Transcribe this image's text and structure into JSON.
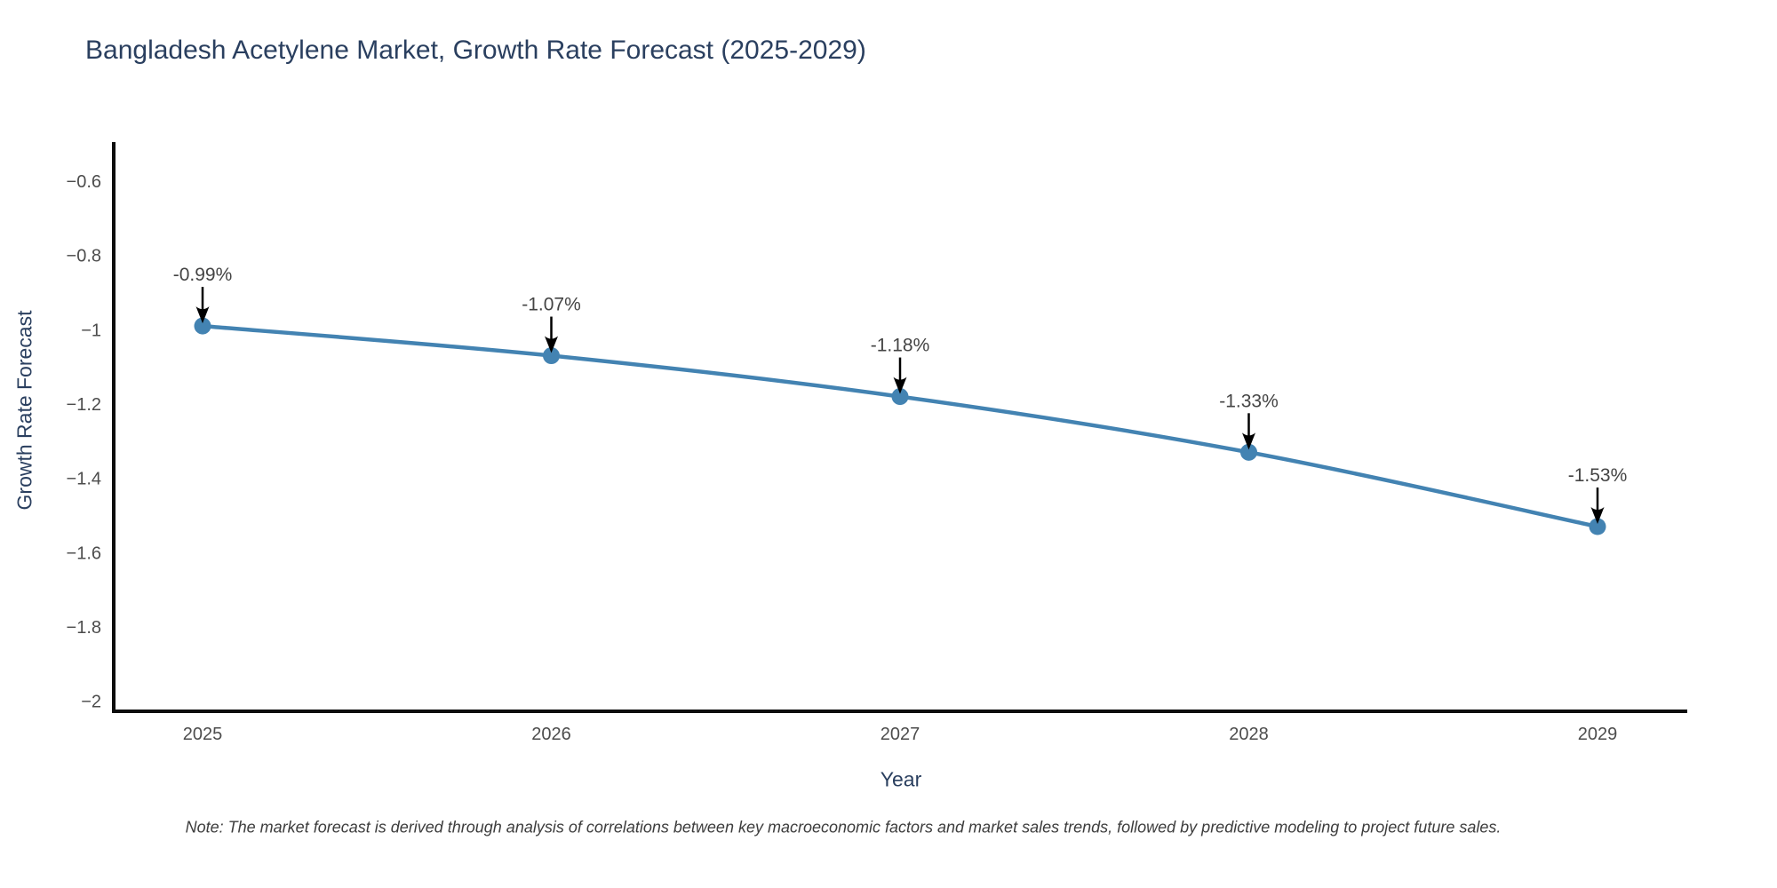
{
  "title": "Bangladesh Acetylene Market, Growth Rate Forecast (2025-2029)",
  "note": "Note: The market forecast is derived through analysis of correlations between key macroeconomic factors and market sales trends, followed by predictive modeling to project future sales.",
  "chart_data": {
    "type": "line",
    "title": "Bangladesh Acetylene Market, Growth Rate Forecast (2025-2029)",
    "xlabel": "Year",
    "ylabel": "Growth Rate Forecast",
    "x": [
      2025,
      2026,
      2027,
      2028,
      2029
    ],
    "series": [
      {
        "name": "Growth Rate Forecast",
        "values": [
          -0.99,
          -1.07,
          -1.18,
          -1.33,
          -1.53
        ],
        "point_labels": [
          "-0.99%",
          "-1.07%",
          "-1.18%",
          "-1.33%",
          "-1.53%"
        ]
      }
    ],
    "x_tick_labels": [
      "2025",
      "2026",
      "2027",
      "2028",
      "2029"
    ],
    "y_tick_labels": [
      "−0.6",
      "−0.8",
      "−1",
      "−1.2",
      "−1.4",
      "−1.6",
      "−1.8",
      "−2"
    ],
    "y_tick_values": [
      -0.6,
      -0.8,
      -1.0,
      -1.2,
      -1.4,
      -1.6,
      -1.8,
      -2.0
    ],
    "ylim": [
      -2.032,
      -0.495
    ],
    "grid": false,
    "legend_position": "none",
    "annotations_have_arrows": true
  },
  "colors": {
    "background": "#ffffff",
    "title_text": "#2a3f5f",
    "axis_label_text": "#2a3f5f",
    "tick_text": "#4c4c4c",
    "annotation_text": "#444444",
    "series_line": "#4383b2",
    "marker_fill": "#4383b2",
    "axis_line": "#0d0d0d",
    "arrow": "#000000"
  }
}
